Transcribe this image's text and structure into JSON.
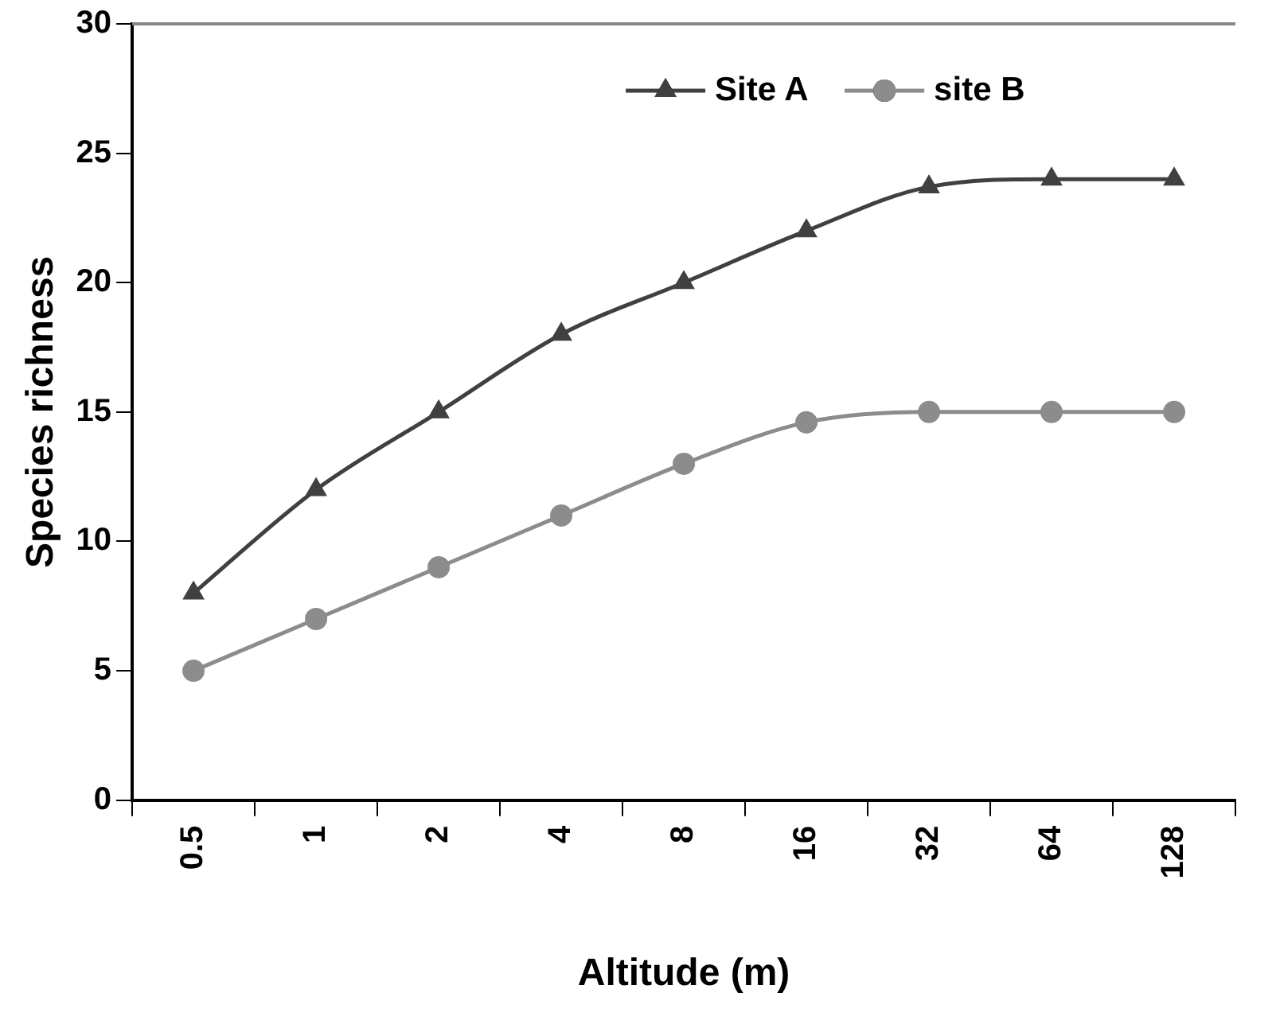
{
  "chart_data": {
    "type": "line",
    "xlabel": "Altitude (m)",
    "ylabel": "Species richness",
    "categories": [
      "0.5",
      "1",
      "2",
      "4",
      "8",
      "16",
      "32",
      "64",
      "128"
    ],
    "series": [
      {
        "name": "Site A",
        "color": "#404040",
        "marker": "triangle",
        "values": [
          8,
          12,
          15,
          18,
          20,
          22,
          23.7,
          24,
          24
        ]
      },
      {
        "name": "site B",
        "color": "#8c8c8c",
        "marker": "circle",
        "values": [
          5,
          7,
          9,
          11,
          13,
          14.6,
          15,
          15,
          15
        ]
      }
    ],
    "ylim": [
      0,
      30
    ],
    "yticks": [
      0,
      5,
      10,
      15,
      20,
      25,
      30
    ],
    "grid": false,
    "legend": "top right"
  }
}
